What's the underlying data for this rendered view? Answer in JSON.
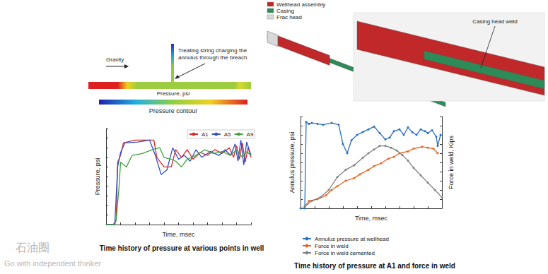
{
  "chart_data": [
    {
      "type": "line",
      "title": "Time history of pressure at various points in well",
      "x_label": "Time, msec",
      "y_label": "Pressure, psi",
      "xlim": [
        0,
        100
      ],
      "xticks": [
        0,
        10,
        20,
        30,
        40,
        50,
        60,
        70,
        80,
        90,
        100
      ],
      "ylim": [
        0,
        100
      ],
      "yticks": [
        0,
        10,
        20,
        30,
        40,
        50,
        60,
        70,
        80,
        90,
        100
      ],
      "grid": false,
      "tick_labels": false,
      "legend": "top-right",
      "series": [
        {
          "name": "A1",
          "color": "#d62728",
          "marker": "none",
          "x": [
            0,
            5,
            7,
            8,
            10,
            12,
            20,
            33,
            35,
            40,
            45,
            48,
            52,
            56,
            60,
            65,
            70,
            75,
            80,
            85,
            88,
            90,
            92,
            94,
            96,
            98,
            100
          ],
          "values": [
            0,
            0,
            5,
            65,
            72,
            85,
            88,
            88,
            70,
            60,
            60,
            78,
            70,
            78,
            68,
            75,
            72,
            78,
            74,
            80,
            70,
            82,
            68,
            85,
            65,
            80,
            70
          ]
        },
        {
          "name": "A5",
          "color": "#2f4fc4",
          "marker": "none",
          "x": [
            0,
            6,
            8,
            10,
            13,
            22,
            30,
            34,
            38,
            42,
            46,
            50,
            54,
            58,
            62,
            66,
            72,
            78,
            82,
            86,
            89,
            91,
            93,
            95,
            97,
            100
          ],
          "values": [
            0,
            0,
            60,
            75,
            85,
            86,
            88,
            72,
            52,
            57,
            80,
            68,
            72,
            66,
            78,
            70,
            76,
            72,
            78,
            72,
            84,
            66,
            88,
            62,
            86,
            72
          ]
        },
        {
          "name": "A9",
          "color": "#3fa33f",
          "marker": "none",
          "x": [
            0,
            6,
            7,
            9,
            10,
            14,
            18,
            25,
            32,
            37,
            40,
            45,
            48,
            52,
            56,
            62,
            68,
            74,
            80,
            86,
            90,
            94,
            97,
            100
          ],
          "values": [
            0,
            0,
            5,
            40,
            65,
            60,
            72,
            74,
            78,
            80,
            70,
            68,
            66,
            60,
            68,
            72,
            78,
            74,
            76,
            72,
            78,
            70,
            76,
            72
          ]
        }
      ]
    },
    {
      "type": "line",
      "title": "Time history of pressure at A1 and force in weld",
      "x_label": "Time, msec",
      "y_label": "Annulus pressure, psi",
      "y2_label": "Force in weld, Kips",
      "xlim": [
        0,
        100
      ],
      "xticks": [
        0,
        10,
        20,
        30,
        40,
        50,
        60,
        70,
        80,
        90,
        100
      ],
      "ylim": [
        0,
        100
      ],
      "yticks": [
        0,
        10,
        20,
        30,
        40,
        50,
        60,
        70,
        80,
        90,
        100
      ],
      "y2lim": [
        0,
        100
      ],
      "y2ticks": [
        0,
        10,
        20,
        30,
        40,
        50,
        60,
        70,
        80,
        90,
        100
      ],
      "grid": false,
      "tick_labels": false,
      "legend": "bottom-left",
      "series": [
        {
          "name": "Annulus pressure at wellhead",
          "color": "#2a6fc0",
          "marker": "circle",
          "x": [
            0,
            3,
            4,
            6,
            8,
            12,
            16,
            22,
            27,
            30,
            33,
            36,
            40,
            44,
            48,
            52,
            56,
            60,
            63,
            66,
            70,
            73,
            76,
            79,
            82,
            85,
            88,
            90,
            93,
            96,
            97,
            99
          ],
          "values": [
            0,
            0,
            94,
            92,
            93,
            92,
            91,
            93,
            91,
            70,
            60,
            74,
            80,
            83,
            86,
            89,
            82,
            75,
            77,
            84,
            86,
            80,
            88,
            83,
            80,
            86,
            84,
            82,
            85,
            78,
            68,
            80
          ]
        },
        {
          "name": "Force in weld",
          "color": "#e8641e",
          "marker": "circle",
          "axis": "y2",
          "x": [
            3,
            6,
            12,
            18,
            22,
            26,
            32,
            38,
            42,
            48,
            52,
            57,
            62,
            66,
            70,
            76,
            80,
            86,
            90,
            94,
            97
          ],
          "values": [
            2,
            8,
            10,
            14,
            20,
            24,
            30,
            33,
            37,
            42,
            46,
            49,
            54,
            56,
            60,
            62,
            65,
            67,
            66,
            65,
            60
          ]
        },
        {
          "name": "Force in weld cemented",
          "color": "#808080",
          "marker": "circle",
          "axis": "y2",
          "x": [
            3,
            8,
            14,
            20,
            26,
            32,
            38,
            44,
            48,
            52,
            56,
            60,
            64,
            68,
            72,
            76,
            80,
            85,
            90,
            95,
            100
          ],
          "values": [
            2,
            8,
            12,
            20,
            34,
            42,
            47,
            55,
            60,
            64,
            68,
            68,
            66,
            63,
            58,
            52,
            44,
            36,
            28,
            20,
            12
          ]
        }
      ]
    }
  ],
  "diagrams": {
    "simulation": {
      "gravity": "Gravity",
      "annotation": "Treating string charging the annulus through the breach",
      "bar_label": "Pressure, psi",
      "colorbar_label": "Pressure contour"
    },
    "model": {
      "legend": [
        {
          "label": "Wellhead assembly",
          "color": "#c0282a"
        },
        {
          "label": "Casing",
          "color": "#2e8b57"
        },
        {
          "label": "Frac head",
          "color": "#d9d9d9"
        }
      ],
      "callout": "Casing head weld"
    },
    "watermark": {
      "logo": "石油圈",
      "slogan": "Go with independent thinker"
    }
  }
}
